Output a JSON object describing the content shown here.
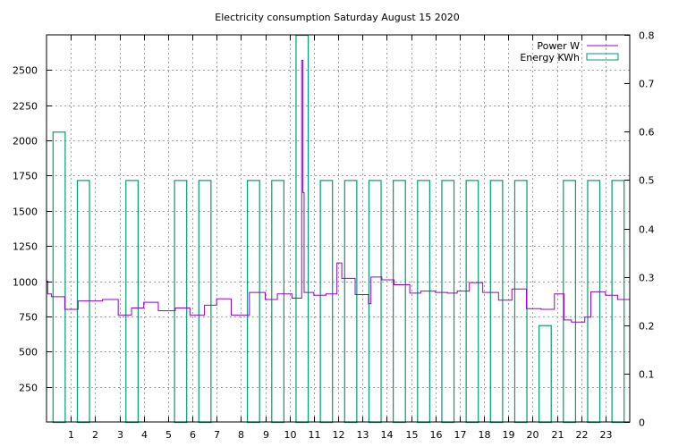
{
  "chart_data": {
    "type": "line",
    "title": "Electricity consumption Saturday August 15 2020",
    "xlabel": "",
    "ylabel": "",
    "y2label": "",
    "xlim": [
      0,
      24
    ],
    "ylim": [
      0,
      2750
    ],
    "y2lim": [
      0,
      0.8
    ],
    "x_ticks": [
      1,
      2,
      3,
      4,
      5,
      6,
      7,
      8,
      9,
      10,
      11,
      12,
      13,
      14,
      15,
      16,
      17,
      18,
      19,
      20,
      21,
      22,
      23
    ],
    "y_ticks": [
      250,
      500,
      750,
      1000,
      1250,
      1500,
      1750,
      2000,
      2250,
      2500
    ],
    "y2_ticks": [
      0,
      0.1,
      0.2,
      0.3,
      0.4,
      0.5,
      0.6,
      0.7,
      0.8
    ],
    "grid": true,
    "legend_position": "top-right",
    "series": [
      {
        "name": "Power W",
        "color": "#9400d3",
        "axis": "left",
        "style": "steps",
        "x": [
          0,
          0.05,
          0.2,
          0.75,
          1.3,
          2.3,
          2.95,
          3.5,
          4.0,
          4.6,
          5.3,
          5.9,
          6.5,
          7.0,
          7.6,
          8.35,
          9.0,
          9.5,
          10.1,
          10.5,
          10.55,
          10.6,
          11.0,
          11.5,
          11.95,
          12.15,
          12.7,
          13.25,
          13.35,
          13.8,
          14.3,
          14.95,
          15.4,
          16.0,
          16.5,
          16.9,
          17.4,
          17.95,
          18.6,
          19.15,
          19.75,
          20.35,
          20.9,
          21.3,
          21.6,
          22.15,
          22.4,
          23.0,
          23.5,
          24.0
        ],
        "y": [
          1000,
          910,
          890,
          800,
          860,
          870,
          760,
          810,
          850,
          790,
          810,
          760,
          830,
          875,
          760,
          920,
          870,
          910,
          880,
          2570,
          1630,
          920,
          900,
          910,
          1130,
          1020,
          905,
          840,
          1030,
          1010,
          975,
          915,
          930,
          920,
          915,
          930,
          990,
          920,
          865,
          945,
          805,
          800,
          910,
          725,
          710,
          745,
          925,
          900,
          870,
          920
        ]
      },
      {
        "name": "Energy KWh",
        "color": "#009e73",
        "axis": "right",
        "style": "boxes",
        "x": [
          0.5,
          1.5,
          2.5,
          3.5,
          4.5,
          5.5,
          6.5,
          7.5,
          8.5,
          9.5,
          10.5,
          11.5,
          12.5,
          13.5,
          14.5,
          15.5,
          16.5,
          17.5,
          18.5,
          19.5,
          20.5,
          21.5,
          22.5,
          23.5
        ],
        "y": [
          0.6,
          0.5,
          0,
          0.5,
          0,
          0.5,
          0.5,
          0,
          0.5,
          0.5,
          0.8,
          0.5,
          0.5,
          0.5,
          0.5,
          0.5,
          0.5,
          0.5,
          0.5,
          0.5,
          0.2,
          0.5,
          0.5,
          0.5
        ]
      }
    ]
  }
}
